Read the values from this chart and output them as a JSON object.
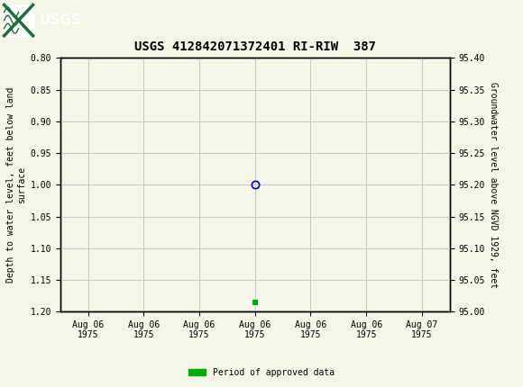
{
  "title": "USGS 412842071372401 RI-RIW  387",
  "left_ylabel_lines": [
    "Depth to water level, feet below land",
    "surface"
  ],
  "right_ylabel": "Groundwater level above NGVD 1929, feet",
  "ylim_left_top": 0.8,
  "ylim_left_bottom": 1.2,
  "ylim_right_top": 95.4,
  "ylim_right_bottom": 95.0,
  "left_yticks": [
    0.8,
    0.85,
    0.9,
    0.95,
    1.0,
    1.05,
    1.1,
    1.15,
    1.2
  ],
  "right_yticks": [
    95.4,
    95.35,
    95.3,
    95.25,
    95.2,
    95.15,
    95.1,
    95.05,
    95.0
  ],
  "data_point_x": 3.5,
  "data_point_y": 1.0,
  "data_point_color": "#0000cc",
  "green_marker_x": 3.5,
  "green_marker_y": 1.185,
  "green_marker_color": "#00aa00",
  "grid_color": "#c8c8c8",
  "background_color": "#f5f5e8",
  "plot_bg_color": "#f5f5e8",
  "header_bg_color": "#1a6e38",
  "header_text": "≡USGS",
  "xtick_positions": [
    0.5,
    1.5,
    2.5,
    3.5,
    4.5,
    5.5,
    6.5
  ],
  "xtick_labels": [
    "Aug 06\n1975",
    "Aug 06\n1975",
    "Aug 06\n1975",
    "Aug 06\n1975",
    "Aug 06\n1975",
    "Aug 06\n1975",
    "Aug 07\n1975"
  ],
  "legend_label": "Period of approved data",
  "legend_color": "#00aa00",
  "title_fontsize": 10,
  "axis_fontsize": 7,
  "ylabel_fontsize": 7,
  "header_fontsize": 11
}
